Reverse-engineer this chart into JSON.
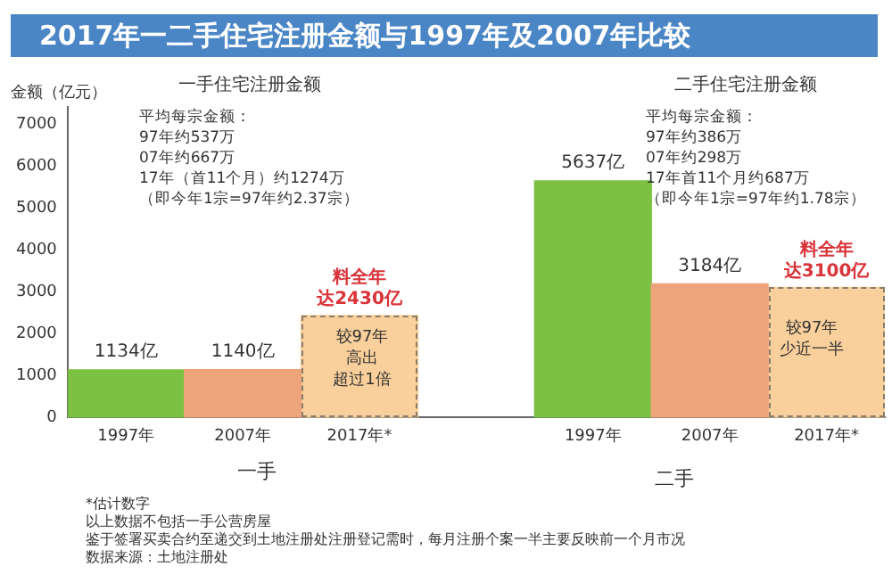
{
  "chart_data": {
    "type": "bar",
    "title": "2017年一二手住宅注册金额与1997年及2007年比较",
    "ylabel": "金额（亿元）",
    "categories": [
      "1997年",
      "2007年",
      "2017年*",
      null,
      "1997年",
      "2007年",
      "2017年*"
    ],
    "series": [
      {
        "colors": [
          "#7dc142",
          "#eda47a",
          null,
          null,
          "#7dc142",
          "#eda47a",
          null
        ],
        "values": [
          1134,
          1140,
          null,
          null,
          5637,
          3184,
          null
        ],
        "value_labels": [
          "1134亿",
          "1140亿",
          null,
          null,
          "5637亿",
          "3184亿",
          null
        ]
      },
      {
        "color": "#f9cf9b",
        "line_style": "dashed",
        "values": [
          null,
          null,
          2430,
          null,
          null,
          null,
          3100
        ]
      }
    ],
    "ylim": [
      0,
      7400
    ],
    "yticks": [
      0,
      1000,
      2000,
      3000,
      4000,
      5000,
      6000,
      7000
    ],
    "grid": false,
    "legend": false,
    "annotations": [
      "一手住宅注册金额",
      "平均每宗金额：",
      "97年约537万",
      "07年约667万",
      "17年（首11个月）约1274万",
      "（即今年1宗=97年约2.37宗）",
      "二手住宅注册金额",
      "平均每宗金额：",
      "97年约386万",
      "07年约298万",
      "17年首11个月约687万",
      "（即今年1宗=97年约1.78宗）",
      "一手",
      "二手",
      "较97年高出超过1倍",
      "较97年少近一半",
      "*估计数字",
      "以上数据不包括一手公营房屋",
      "鉴于签署买卖合约至递交到土地注册处注册登记需时，每月注册个案一半主要反映前一个月市况",
      "数据来源：土地注册处",
      {
        "text": "料全年达2430亿",
        "y": 2430
      },
      {
        "text": "料全年达3100亿",
        "y": 3100
      }
    ]
  }
}
